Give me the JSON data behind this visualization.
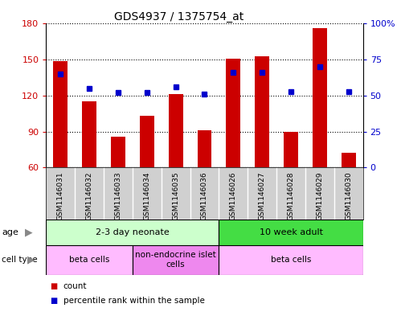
{
  "title": "GDS4937 / 1375754_at",
  "samples": [
    "GSM1146031",
    "GSM1146032",
    "GSM1146033",
    "GSM1146034",
    "GSM1146035",
    "GSM1146036",
    "GSM1146026",
    "GSM1146027",
    "GSM1146028",
    "GSM1146029",
    "GSM1146030"
  ],
  "counts": [
    149,
    115,
    86,
    103,
    121,
    91,
    151,
    153,
    90,
    176,
    72
  ],
  "percentiles": [
    65,
    55,
    52,
    52,
    56,
    51,
    66,
    66,
    53,
    70,
    53
  ],
  "ylim_left": [
    60,
    180
  ],
  "ylim_right": [
    0,
    100
  ],
  "yticks_left": [
    60,
    90,
    120,
    150,
    180
  ],
  "yticks_right": [
    0,
    25,
    50,
    75,
    100
  ],
  "ytick_labels_right": [
    "0",
    "25",
    "50",
    "75",
    "100%"
  ],
  "bar_color": "#cc0000",
  "dot_color": "#0000cc",
  "bar_width": 0.5,
  "age_groups": [
    {
      "label": "2-3 day neonate",
      "start": 0,
      "end": 6,
      "color": "#ccffcc"
    },
    {
      "label": "10 week adult",
      "start": 6,
      "end": 11,
      "color": "#44dd44"
    }
  ],
  "cell_type_groups": [
    {
      "label": "beta cells",
      "start": 0,
      "end": 3,
      "color": "#ffbbff"
    },
    {
      "label": "non-endocrine islet\ncells",
      "start": 3,
      "end": 6,
      "color": "#ee88ee"
    },
    {
      "label": "beta cells",
      "start": 6,
      "end": 11,
      "color": "#ffbbff"
    }
  ],
  "legend_items": [
    {
      "label": "count",
      "color": "#cc0000"
    },
    {
      "label": "percentile rank within the sample",
      "color": "#0000cc"
    }
  ],
  "label_bg_color": "#d0d0d0",
  "figsize": [
    4.99,
    3.93
  ],
  "dpi": 100
}
